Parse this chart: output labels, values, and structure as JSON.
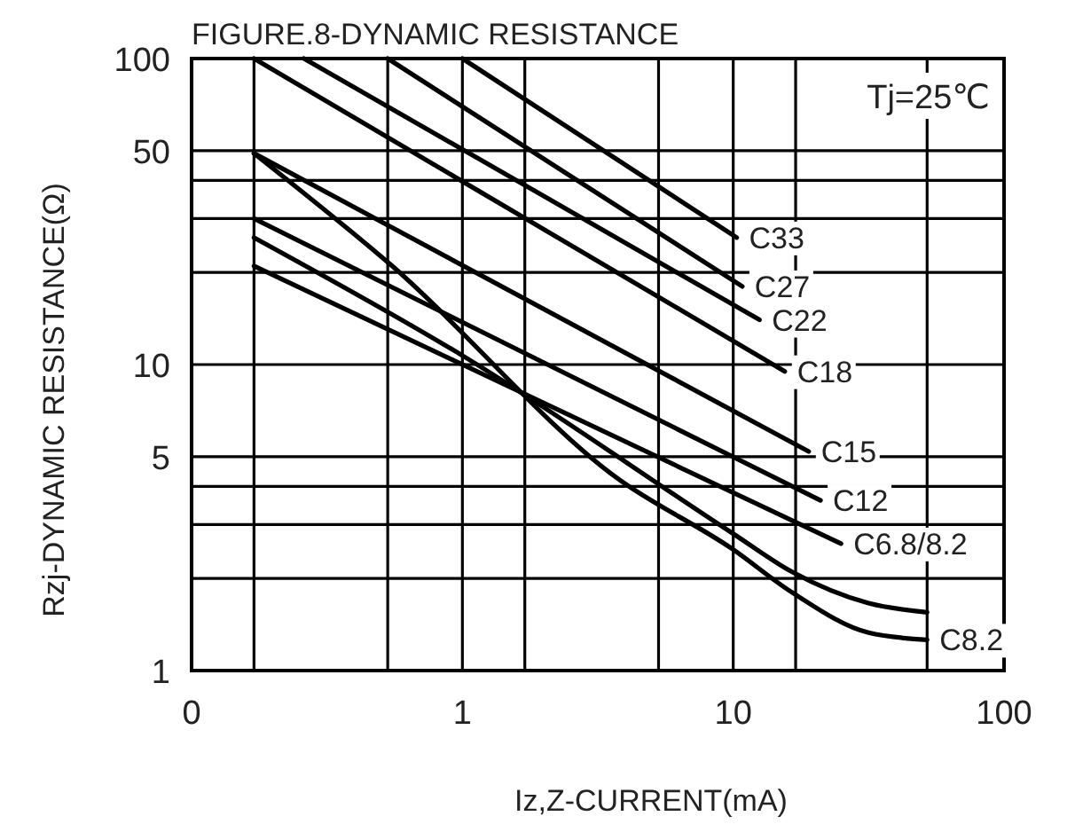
{
  "chart_data": {
    "type": "line",
    "title": "FIGURE.8-DYNAMIC RESISTANCE",
    "xlabel": "Iz,Z-CURRENT(mA)",
    "ylabel": "Rzj-DYNAMIC RESISTANCE(Ω)",
    "annotations": [
      "Tj=25℃"
    ],
    "log": "xy",
    "grid": true,
    "legend": false,
    "marker": "none",
    "line_style": "solid",
    "xlim": [
      0.1,
      100
    ],
    "ylim": [
      1,
      100
    ],
    "xticks": [
      {
        "value": 0.1,
        "label": "0"
      },
      {
        "value": 0.17,
        "label": null
      },
      {
        "value": 0.53,
        "label": null
      },
      1,
      {
        "value": 1.7,
        "label": null
      },
      {
        "value": 5.3,
        "label": null
      },
      10,
      {
        "value": 17,
        "label": null
      },
      {
        "value": 52,
        "label": null
      },
      100
    ],
    "yticks": [
      1,
      {
        "value": 2,
        "label": null
      },
      {
        "value": 3,
        "label": null
      },
      {
        "value": 4,
        "label": null
      },
      5,
      10,
      {
        "value": 20,
        "label": null
      },
      {
        "value": 30,
        "label": null
      },
      {
        "value": 40,
        "label": null
      },
      50,
      100
    ],
    "series": [
      {
        "name": "C33",
        "color": "#000000",
        "x": [
          1,
          10.3
        ],
        "values": [
          100,
          26
        ]
      },
      {
        "name": "C27",
        "color": "#000000",
        "x": [
          0.53,
          10.8
        ],
        "values": [
          100,
          18
        ]
      },
      {
        "name": "C22",
        "color": "#000000",
        "x": [
          0.26,
          12.5
        ],
        "values": [
          100,
          14
        ]
      },
      {
        "name": "C18",
        "color": "#000000",
        "x": [
          0.17,
          15.5
        ],
        "values": [
          100,
          9.5
        ]
      },
      {
        "name": "C15",
        "color": "#000000",
        "x": [
          0.17,
          19
        ],
        "values": [
          49,
          5.2
        ]
      },
      {
        "name": "C12",
        "color": "#000000",
        "x": [
          0.17,
          21
        ],
        "values": [
          30,
          3.6
        ]
      },
      {
        "name": "C6.8/8.2",
        "color": "#000000",
        "x": [
          0.17,
          25
        ],
        "values": [
          21,
          2.6
        ]
      },
      {
        "color": "#000000",
        "x": [
          0.17,
          1,
          10,
          16.5,
          31.6,
          52
        ],
        "values": [
          26,
          10.7,
          2.8,
          2.1,
          1.66,
          1.55
        ]
      },
      {
        "name": "C8.2",
        "color": "#000000",
        "x": [
          0.17,
          0.55,
          3.8,
          9.9,
          16.5,
          31.6,
          52
        ],
        "values": [
          49,
          21,
          4.2,
          2.5,
          1.8,
          1.33,
          1.26
        ]
      }
    ]
  }
}
